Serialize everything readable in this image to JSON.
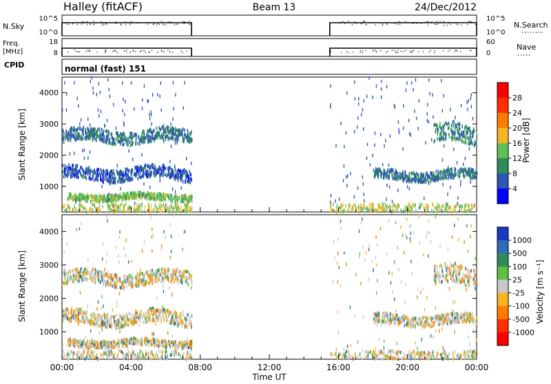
{
  "header": {
    "station": "Halley (fitACF)",
    "beam": "Beam 13",
    "date": "24/Dec/2012"
  },
  "params": {
    "nsky_label": "N.Sky",
    "nsky_ticks": [
      "10^5",
      "10^0"
    ],
    "nsearch_label": "N.Search",
    "nsearch_ticks": [
      "10^5",
      "10^0"
    ],
    "freq_label_1": "Freq.",
    "freq_label_2": "[MHz]",
    "freq_ticks": [
      "18",
      "8"
    ],
    "nave_label": "Nave",
    "nave_ticks": [
      "60",
      "0"
    ],
    "cpid_label": "CPID",
    "cpid_value": "normal (fast) 151"
  },
  "chart_data": [
    {
      "type": "heatmap",
      "title": "",
      "ylabel": "Slant Range [km]",
      "xlabel": "Time UT",
      "yticks": [
        "1000",
        "2000",
        "3000",
        "4000"
      ],
      "ylim": [
        180,
        4500
      ],
      "xlim_hours": [
        0,
        24
      ],
      "colorbar_label": "Power [dB]",
      "colorbar_ticks": [
        "4",
        "8",
        "12",
        "16",
        "20",
        "24",
        "28"
      ],
      "colors": [
        "#0000ff",
        "#2e56b6",
        "#2f8c5a",
        "#5fc05a",
        "#f5b520",
        "#ff7c00",
        "#ff2f00",
        "#ff0000"
      ],
      "data_intervals": [
        [
          0,
          7.5
        ],
        [
          15.5,
          24
        ]
      ],
      "echo_bands": [
        {
          "x": [
            0,
            7.5
          ],
          "y": [
            2400,
            2800
          ],
          "value": 8
        },
        {
          "x": [
            0,
            7.5
          ],
          "y": [
            1200,
            1600
          ],
          "value": 6
        },
        {
          "x": [
            0.3,
            7.5
          ],
          "y": [
            550,
            760
          ],
          "value": 14
        },
        {
          "x": [
            18,
            24
          ],
          "y": [
            1200,
            1500
          ],
          "value": 8
        },
        {
          "x": [
            21.5,
            24
          ],
          "y": [
            2350,
            2900
          ],
          "value": 10
        }
      ]
    },
    {
      "type": "heatmap",
      "title": "",
      "ylabel": "Slant Range [km]",
      "xlabel": "Time UT",
      "yticks": [
        "1000",
        "2000",
        "3000",
        "4000"
      ],
      "ylim": [
        180,
        4500
      ],
      "xlim_hours": [
        0,
        24
      ],
      "colorbar_label": "Velocity [m s⁻¹]",
      "colorbar_ticks": [
        "1000",
        "500",
        "100",
        "25",
        "-25",
        "-100",
        "-500",
        "-1000"
      ],
      "colors": [
        "#1a38c0",
        "#2e6cb6",
        "#2f8c5a",
        "#5fc040",
        "#c8c8c8",
        "#f5b520",
        "#ff7c00",
        "#ff2f00",
        "#ff0000"
      ],
      "data_intervals": [
        [
          0,
          7.5
        ],
        [
          15.5,
          24
        ]
      ],
      "echo_bands": [
        {
          "x": [
            0,
            7.5
          ],
          "y": [
            2400,
            2800
          ],
          "value": -100
        },
        {
          "x": [
            0,
            7.5
          ],
          "y": [
            1200,
            1600
          ],
          "value": 0
        },
        {
          "x": [
            0.3,
            7.5
          ],
          "y": [
            550,
            760
          ],
          "value": 100
        },
        {
          "x": [
            18,
            24
          ],
          "y": [
            1200,
            1500
          ],
          "value": 0
        },
        {
          "x": [
            21.5,
            24
          ],
          "y": [
            2350,
            2900
          ],
          "value": 0
        }
      ]
    }
  ],
  "x_axis": {
    "ticks": [
      "00:00",
      "04:00",
      "08:00",
      "12:00",
      "16:00",
      "20:00",
      "00:00"
    ],
    "label": "Time UT"
  }
}
